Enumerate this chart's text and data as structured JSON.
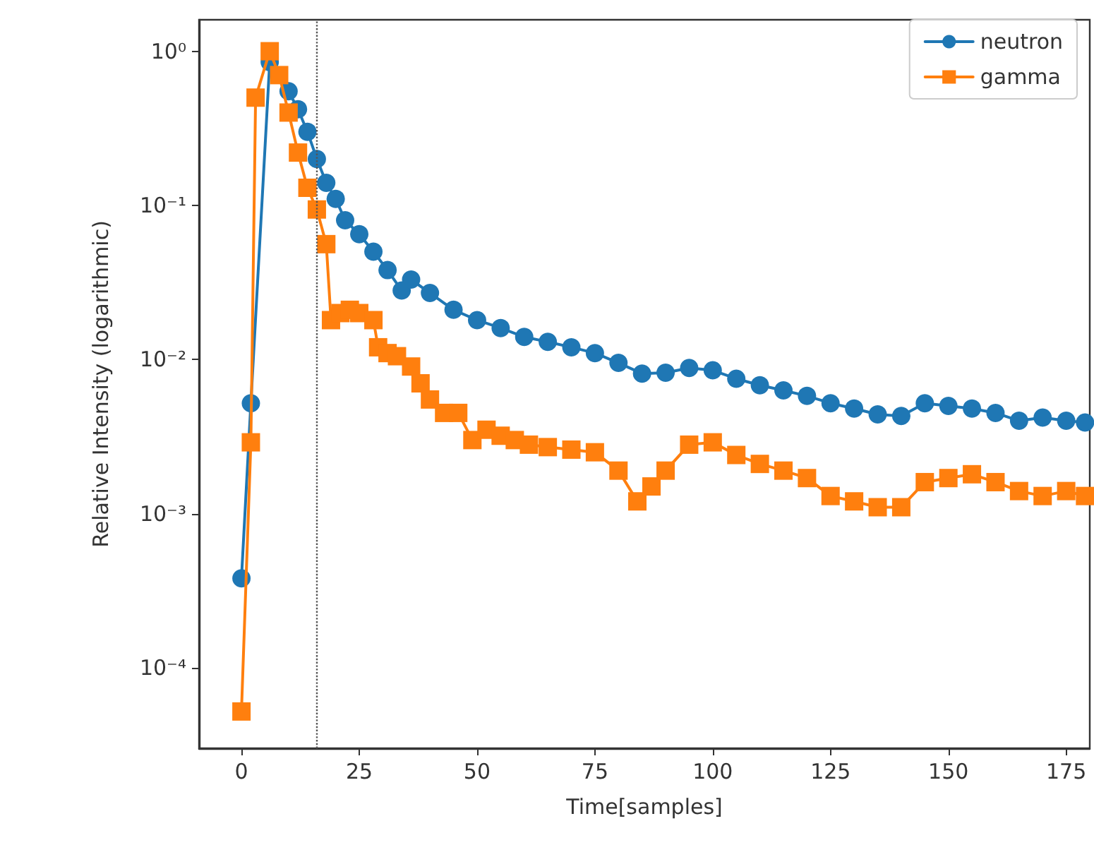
{
  "chart_data": {
    "type": "line",
    "xlabel": "Time[samples]",
    "ylabel": "Relative Intensity (logarithmic)",
    "log": "y",
    "grid": false,
    "legend": "top right",
    "xlim": [
      -9,
      180
    ],
    "xticks": [
      0,
      25,
      50,
      75,
      100,
      125,
      150,
      175
    ],
    "ylim": [
      3e-05,
      1.6
    ],
    "yticks": [
      {
        "value": 0.0001,
        "label": "10⁻⁴"
      },
      {
        "value": 0.001,
        "label": "10⁻³"
      },
      {
        "value": 0.01,
        "label": "10⁻²"
      },
      {
        "value": 0.1,
        "label": "10⁻¹"
      },
      {
        "value": 1,
        "label": "10⁰"
      }
    ],
    "ref_lines": [
      {
        "axis": "x",
        "value": 16,
        "label": null,
        "color": "#555555",
        "line_style": "dotted"
      }
    ],
    "series": [
      {
        "name": "neutron",
        "color": "#1f77b4",
        "marker": "circle",
        "x": [
          0,
          2,
          6,
          10,
          12,
          14,
          16,
          18,
          20,
          22,
          25,
          28,
          31,
          34,
          36,
          40,
          45,
          50,
          55,
          60,
          65,
          70,
          75,
          80,
          85,
          90,
          95,
          100,
          105,
          110,
          115,
          120,
          125,
          130,
          135,
          140,
          145,
          150,
          155,
          160,
          165,
          170,
          175,
          179
        ],
        "values": [
          0.00038,
          0.0052,
          0.85,
          0.55,
          0.42,
          0.3,
          0.2,
          0.14,
          0.11,
          0.08,
          0.065,
          0.05,
          0.038,
          0.028,
          0.033,
          0.027,
          0.021,
          0.018,
          0.016,
          0.014,
          0.013,
          0.012,
          0.011,
          0.0095,
          0.0081,
          0.0082,
          0.0088,
          0.0085,
          0.0075,
          0.0068,
          0.0063,
          0.0058,
          0.0052,
          0.0048,
          0.0044,
          0.0043,
          0.0052,
          0.005,
          0.0048,
          0.0045,
          0.004,
          0.0042,
          0.004,
          0.0039
        ]
      },
      {
        "name": "gamma",
        "color": "#ff7f0e",
        "marker": "square",
        "x": [
          0,
          2,
          3,
          6,
          8,
          10,
          12,
          14,
          16,
          18,
          19,
          21,
          23,
          25,
          28,
          29,
          30,
          31,
          33,
          35,
          36,
          38,
          40,
          43,
          46,
          49,
          52,
          55,
          58,
          61,
          65,
          70,
          75,
          80,
          84,
          87,
          90,
          95,
          100,
          105,
          110,
          115,
          120,
          125,
          130,
          135,
          140,
          145,
          150,
          155,
          160,
          165,
          170,
          175,
          179
        ],
        "values": [
          5.2e-05,
          0.0029,
          0.5,
          1.0,
          0.7,
          0.4,
          0.22,
          0.13,
          0.094,
          0.056,
          0.018,
          0.02,
          0.021,
          0.02,
          0.018,
          0.012,
          null,
          0.011,
          0.0105,
          null,
          0.009,
          0.007,
          0.0055,
          0.0045,
          0.0045,
          0.003,
          0.0035,
          0.0032,
          0.003,
          0.0028,
          0.0027,
          0.0026,
          0.0025,
          0.0019,
          0.0012,
          0.0015,
          0.0019,
          0.0028,
          0.0029,
          0.0024,
          0.0021,
          0.0019,
          0.0017,
          0.0013,
          0.0012,
          0.0011,
          0.0011,
          0.0016,
          0.0017,
          0.0018,
          0.0016,
          0.0014,
          0.0013,
          0.0014,
          0.0013
        ]
      }
    ]
  }
}
